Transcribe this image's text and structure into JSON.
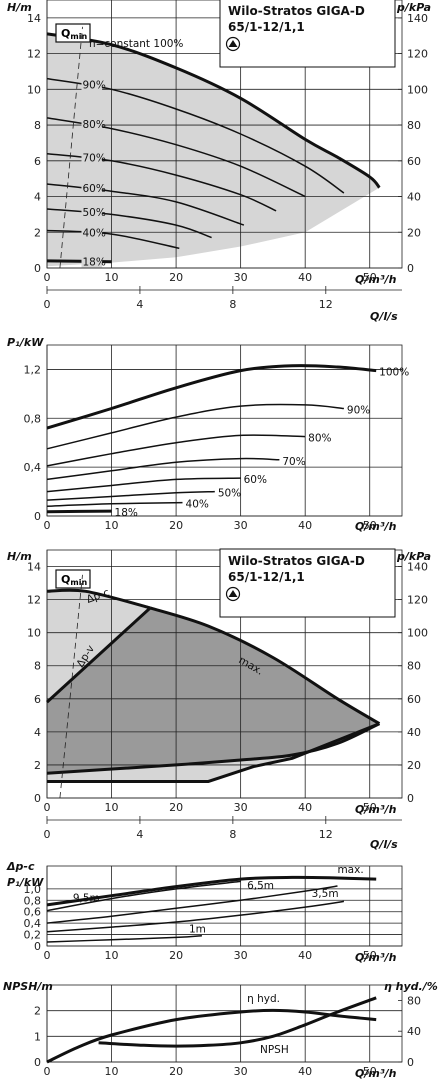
{
  "product": {
    "line1": "Wilo-Stratos GIGA-D",
    "line2": "65/1-12/1,1"
  },
  "qmin_label": "Q",
  "qmin_sub": "min",
  "colors": {
    "fill_light": "#d6d6d6",
    "fill_dark": "#9a9a9a",
    "line": "#111111"
  },
  "chart_data": [
    {
      "id": "hq1",
      "type": "line",
      "title": "",
      "ylabel": "H/m",
      "y2label": "p/kPa",
      "xlabel": "Q/m³/h",
      "x2label": "Q/l/s",
      "xlim": [
        0,
        55
      ],
      "ylim": [
        0,
        15
      ],
      "y2lim": [
        0,
        150
      ],
      "x2lim": [
        0,
        15.28
      ],
      "x_ticks": [
        0,
        10,
        20,
        30,
        40,
        50
      ],
      "y_ticks": [
        0,
        2,
        4,
        6,
        8,
        10,
        12,
        14
      ],
      "y2_ticks": [
        0,
        20,
        40,
        60,
        80,
        100,
        120,
        140
      ],
      "x2_ticks": [
        0,
        4,
        8,
        12
      ],
      "grid": true,
      "series": [
        {
          "name": "n=constant 100%",
          "x": [
            0,
            10,
            20,
            30,
            40,
            45,
            50,
            51.5
          ],
          "y": [
            13.1,
            12.5,
            11.2,
            9.5,
            7.2,
            6.2,
            5.1,
            4.5
          ]
        },
        {
          "name": "90%",
          "x": [
            0,
            10,
            20,
            30,
            40,
            46
          ],
          "y": [
            10.6,
            10.0,
            8.9,
            7.5,
            5.7,
            4.2
          ]
        },
        {
          "name": "80%",
          "x": [
            0,
            10,
            20,
            30,
            40
          ],
          "y": [
            8.4,
            7.8,
            6.9,
            5.7,
            4.0
          ]
        },
        {
          "name": "70%",
          "x": [
            0,
            10,
            20,
            30,
            35.5
          ],
          "y": [
            6.4,
            6.0,
            5.2,
            4.1,
            3.2
          ]
        },
        {
          "name": "60%",
          "x": [
            0,
            10,
            20,
            30.5
          ],
          "y": [
            4.7,
            4.3,
            3.7,
            2.4
          ]
        },
        {
          "name": "50%",
          "x": [
            0,
            10,
            20,
            25.5
          ],
          "y": [
            3.3,
            3.0,
            2.4,
            1.7
          ]
        },
        {
          "name": "40%",
          "x": [
            0,
            10,
            20.5
          ],
          "y": [
            2.1,
            1.9,
            1.1
          ]
        },
        {
          "name": "18%",
          "x": [
            0,
            10
          ],
          "y": [
            0.4,
            0.35
          ]
        }
      ],
      "qmin_line": {
        "x": [
          2,
          5.5
        ],
        "y": [
          0,
          13.5
        ]
      }
    },
    {
      "id": "p1",
      "type": "line",
      "ylabel": "P₁/kW",
      "xlabel": "Q/m³/h",
      "xlim": [
        0,
        55
      ],
      "ylim": [
        0,
        1.4
      ],
      "x_ticks": [
        0,
        10,
        20,
        30,
        40,
        50
      ],
      "y_ticks": [
        0,
        0.4,
        0.8,
        1.2
      ],
      "y_tick_labels": [
        "0",
        "0,4",
        "0,8",
        "1,2"
      ],
      "grid": true,
      "series": [
        {
          "name": "100%",
          "x": [
            0,
            10,
            20,
            30,
            38,
            45,
            51
          ],
          "y": [
            0.72,
            0.88,
            1.05,
            1.19,
            1.23,
            1.22,
            1.19
          ]
        },
        {
          "name": "90%",
          "x": [
            0,
            10,
            20,
            30,
            40,
            46
          ],
          "y": [
            0.55,
            0.68,
            0.81,
            0.9,
            0.91,
            0.88
          ]
        },
        {
          "name": "80%",
          "x": [
            0,
            10,
            20,
            30,
            40
          ],
          "y": [
            0.41,
            0.51,
            0.6,
            0.66,
            0.65
          ]
        },
        {
          "name": "70%",
          "x": [
            0,
            10,
            20,
            30,
            36
          ],
          "y": [
            0.3,
            0.37,
            0.44,
            0.47,
            0.46
          ]
        },
        {
          "name": "60%",
          "x": [
            0,
            10,
            20,
            30
          ],
          "y": [
            0.2,
            0.25,
            0.3,
            0.31
          ]
        },
        {
          "name": "50%",
          "x": [
            0,
            10,
            20,
            26
          ],
          "y": [
            0.13,
            0.16,
            0.19,
            0.2
          ]
        },
        {
          "name": "40%",
          "x": [
            0,
            10,
            21
          ],
          "y": [
            0.08,
            0.1,
            0.11
          ]
        },
        {
          "name": "18%",
          "x": [
            0,
            10
          ],
          "y": [
            0.035,
            0.04
          ]
        }
      ]
    },
    {
      "id": "hq2",
      "type": "area",
      "ylabel": "H/m",
      "y2label": "p/kPa",
      "xlabel": "Q/m³/h",
      "x2label": "Q/l/s",
      "xlim": [
        0,
        55
      ],
      "ylim": [
        0,
        15
      ],
      "y2lim": [
        0,
        150
      ],
      "x2lim": [
        0,
        15.28
      ],
      "x_ticks": [
        0,
        10,
        20,
        30,
        40,
        50
      ],
      "y_ticks": [
        0,
        2,
        4,
        6,
        8,
        10,
        12,
        14
      ],
      "y2_ticks": [
        0,
        20,
        40,
        60,
        80,
        100,
        120,
        140
      ],
      "x2_ticks": [
        0,
        4,
        8,
        12
      ],
      "grid": true,
      "curve_labels": [
        "Δp-c",
        "Δp-v",
        "max."
      ],
      "max_curve": {
        "x": [
          16,
          25,
          35,
          45,
          51.5
        ],
        "y": [
          11.5,
          10.4,
          8.5,
          6.0,
          4.5
        ]
      },
      "dpc_line": {
        "x": [
          0,
          6,
          16
        ],
        "y": [
          12.5,
          12.5,
          11.5
        ]
      },
      "dpv_line": {
        "x": [
          0,
          16
        ],
        "y": [
          5.8,
          11.5
        ]
      },
      "min_curve": {
        "x": [
          0,
          20,
          30,
          38,
          45,
          51.5
        ],
        "y": [
          1.5,
          2.0,
          2.3,
          2.6,
          3.3,
          4.5
        ]
      },
      "bottom_line": {
        "x": [
          0,
          25,
          32,
          38,
          51.5
        ],
        "y": [
          1.0,
          1.0,
          1.9,
          2.4,
          4.5
        ]
      },
      "qmin_line": {
        "x": [
          2,
          5.5
        ],
        "y": [
          0,
          13.5
        ]
      }
    },
    {
      "id": "p2",
      "type": "line",
      "ylabel": "P₁/kW",
      "ylabel2": "Δp-c",
      "xlabel": "Q/m³/h",
      "xlim": [
        0,
        55
      ],
      "ylim": [
        0,
        1.4
      ],
      "x_ticks": [
        0,
        10,
        20,
        30,
        40,
        50
      ],
      "y_ticks": [
        0,
        0.2,
        0.4,
        0.6,
        0.8,
        1.0
      ],
      "y_tick_labels": [
        "0",
        "0,2",
        "0,4",
        "0,6",
        "0,8",
        "1,0"
      ],
      "grid": true,
      "series": [
        {
          "name": "max.",
          "x": [
            0,
            10,
            20,
            30,
            38,
            45,
            51
          ],
          "y": [
            0.72,
            0.88,
            1.04,
            1.17,
            1.2,
            1.19,
            1.17
          ]
        },
        {
          "name": "9,5m",
          "x": [
            0,
            10,
            20,
            30
          ],
          "y": [
            0.62,
            0.83,
            1.0,
            1.13
          ]
        },
        {
          "name": "6,5m",
          "x": [
            0,
            10,
            20,
            30,
            40,
            45
          ],
          "y": [
            0.4,
            0.52,
            0.66,
            0.8,
            0.96,
            1.05
          ]
        },
        {
          "name": "3,5m",
          "x": [
            0,
            10,
            20,
            30,
            40,
            46
          ],
          "y": [
            0.25,
            0.33,
            0.42,
            0.54,
            0.68,
            0.78
          ]
        },
        {
          "name": "1m",
          "x": [
            0,
            10,
            20,
            24
          ],
          "y": [
            0.07,
            0.11,
            0.15,
            0.18
          ]
        }
      ]
    },
    {
      "id": "npsh",
      "type": "line",
      "ylabel": "NPSH/m",
      "y2label": "η hyd./%",
      "xlabel": "Q/m³/h",
      "xlim": [
        0,
        55
      ],
      "ylim": [
        0,
        3
      ],
      "y2lim": [
        0,
        100
      ],
      "x_ticks": [
        0,
        10,
        20,
        30,
        40,
        50
      ],
      "y_ticks": [
        0,
        1,
        2
      ],
      "y2_ticks": [
        0,
        40,
        80
      ],
      "grid": true,
      "series": [
        {
          "name": "η hyd.",
          "axis": "y2",
          "x": [
            0,
            5,
            10,
            20,
            30,
            35,
            40,
            45,
            51
          ],
          "y": [
            0,
            20,
            35,
            55,
            65,
            67,
            65,
            60,
            55
          ]
        },
        {
          "name": "NPSH",
          "axis": "y",
          "x": [
            8,
            15,
            20,
            25,
            30,
            35,
            40,
            45,
            51
          ],
          "y": [
            0.75,
            0.65,
            0.62,
            0.65,
            0.75,
            1.0,
            1.45,
            1.95,
            2.5
          ]
        }
      ]
    }
  ]
}
